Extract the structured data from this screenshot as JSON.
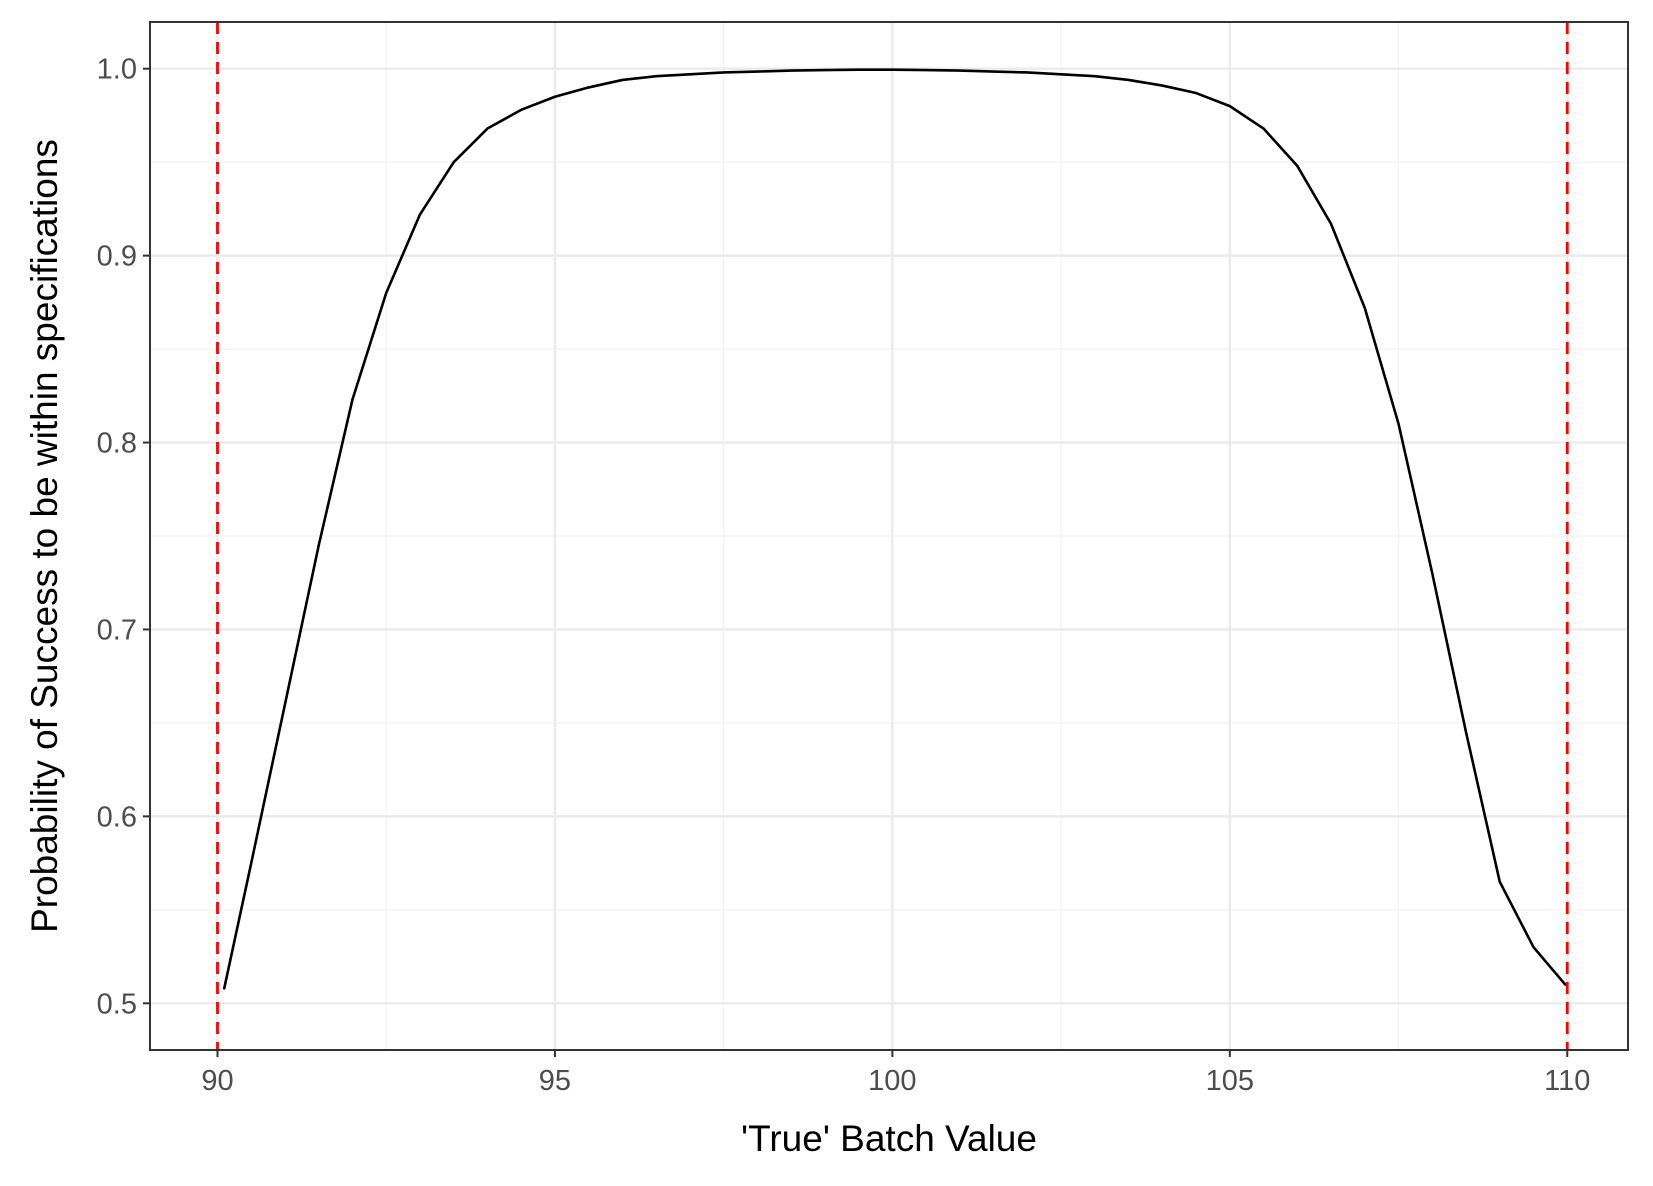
{
  "chart_data": {
    "type": "line",
    "title": "",
    "xlabel": "'True' Batch Value",
    "ylabel": "Probability of Success to be within specifications",
    "xlim": [
      89.0,
      110.9
    ],
    "ylim": [
      0.475,
      1.025
    ],
    "x_ticks": [
      90,
      95,
      100,
      105,
      110
    ],
    "x_tick_labels": [
      "90",
      "95",
      "100",
      "105",
      "110"
    ],
    "y_ticks": [
      0.5,
      0.6,
      0.7,
      0.8,
      0.9,
      1.0
    ],
    "y_tick_labels": [
      "0.5",
      "0.6",
      "0.7",
      "0.8",
      "0.9",
      "1.0"
    ],
    "x_minor_ticks": [
      92.5,
      97.5,
      102.5,
      107.5
    ],
    "y_minor_ticks": [
      0.55,
      0.65,
      0.75,
      0.85,
      0.95
    ],
    "grid": true,
    "series": [
      {
        "color": "#000000",
        "x": [
          90.1,
          90.5,
          91.0,
          91.5,
          92.0,
          92.5,
          93.0,
          93.5,
          94.0,
          94.5,
          95.0,
          95.5,
          96.0,
          96.5,
          97.0,
          97.5,
          98.0,
          98.5,
          99.0,
          99.5,
          100.0,
          100.5,
          101.0,
          101.5,
          102.0,
          102.5,
          103.0,
          103.5,
          104.0,
          104.5,
          105.0,
          105.5,
          106.0,
          106.5,
          107.0,
          107.5,
          108.0,
          108.5,
          109.0,
          109.5,
          109.97
        ],
        "y": [
          0.508,
          0.575,
          0.66,
          0.745,
          0.823,
          0.88,
          0.922,
          0.95,
          0.968,
          0.978,
          0.985,
          0.99,
          0.994,
          0.996,
          0.997,
          0.998,
          0.9985,
          0.999,
          0.9993,
          0.9995,
          0.9995,
          0.9993,
          0.999,
          0.9985,
          0.998,
          0.997,
          0.996,
          0.994,
          0.991,
          0.987,
          0.98,
          0.968,
          0.948,
          0.917,
          0.872,
          0.81,
          0.73,
          0.645,
          0.565,
          0.53,
          0.51
        ]
      }
    ],
    "reference_lines": [
      {
        "axis": "x",
        "value": 90,
        "color": "#ff0000",
        "style": "dashed"
      },
      {
        "axis": "x",
        "value": 110,
        "color": "#ff0000",
        "style": "dashed"
      }
    ],
    "colors": {
      "panel_background": "#ffffff",
      "grid_major": "#ebebeb",
      "grid_minor": "#f2f2f2",
      "panel_border": "#333333",
      "tick_text": "#4d4d4d",
      "axis_title": "#000000"
    }
  }
}
